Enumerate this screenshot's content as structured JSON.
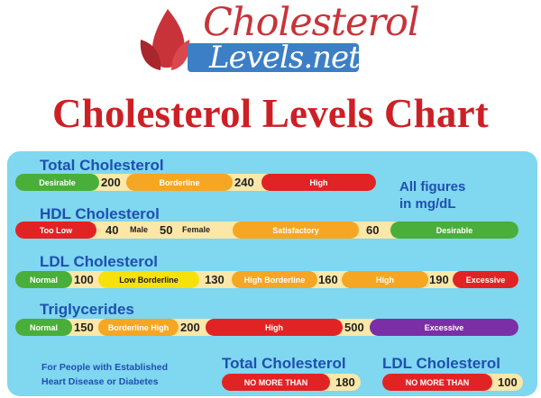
{
  "logo": {
    "word": "Cholesterol",
    "sub": "Levels.net"
  },
  "title": "Cholesterol Levels Chart",
  "note": {
    "line1": "All figures",
    "line2": "in mg/dL"
  },
  "total": {
    "header": "Total Cholesterol",
    "labels": [
      "Desirable",
      "Borderline",
      "High"
    ],
    "nums": [
      "200",
      "240"
    ]
  },
  "hdl": {
    "header": "HDL Cholesterol",
    "labels": [
      "Too Low",
      "Satisfactory",
      "Desirable"
    ],
    "nums": [
      "40",
      "Male",
      "50",
      "Female",
      "60"
    ]
  },
  "ldl": {
    "header": "LDL Cholesterol",
    "labels": [
      "Normal",
      "Low Borderline",
      "High Borderline",
      "High",
      "Excessive"
    ],
    "nums": [
      "100",
      "130",
      "160",
      "190"
    ]
  },
  "trig": {
    "header": "Triglycerides",
    "labels": [
      "Normal",
      "Borderline High",
      "High",
      "Excessive"
    ],
    "nums": [
      "150",
      "200",
      "500"
    ]
  },
  "heart": {
    "line1": "For People with Established",
    "line2": "Heart Disease or Diabetes",
    "total_header": "Total Cholesterol",
    "total_label": "NO MORE THAN",
    "total_num": "180",
    "ldl_header": "LDL Cholesterol",
    "ldl_label": "NO MORE THAN",
    "ldl_num": "100"
  }
}
